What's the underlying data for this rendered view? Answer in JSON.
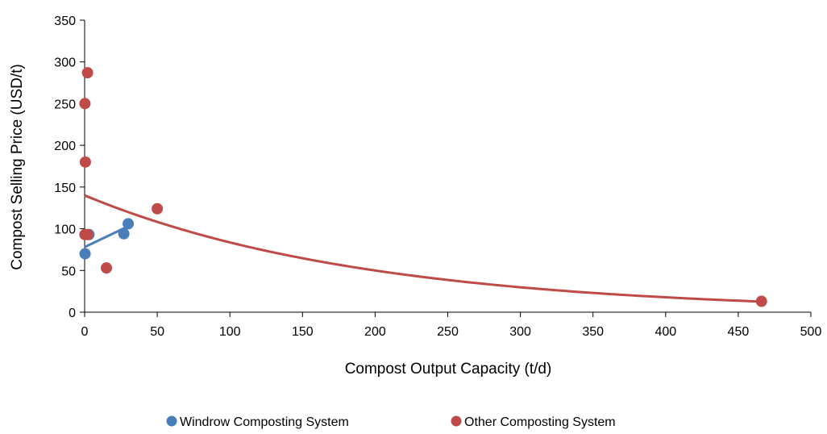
{
  "chart_data": {
    "type": "scatter",
    "xlabel": "Compost Output Capacity (t/d)",
    "ylabel": "Compost Selling Price (USD/t)",
    "xlim": [
      0,
      500
    ],
    "ylim": [
      0,
      350
    ],
    "xticks": [
      0,
      50,
      100,
      150,
      200,
      250,
      300,
      350,
      400,
      450,
      500
    ],
    "yticks": [
      0,
      50,
      100,
      150,
      200,
      250,
      300,
      350
    ],
    "grid": false,
    "legend_position": "bottom",
    "series": [
      {
        "name": "Windrow Composting System",
        "color": "#4a7ebb",
        "points": [
          [
            0.3,
            70
          ],
          [
            3,
            93
          ],
          [
            27,
            94
          ],
          [
            30,
            106
          ]
        ],
        "trendline": {
          "type": "linear",
          "from": [
            0,
            78
          ],
          "to": [
            30,
            103
          ]
        }
      },
      {
        "name": "Other Composting System",
        "color": "#be4b48",
        "points": [
          [
            2,
            287
          ],
          [
            0.2,
            250
          ],
          [
            0.5,
            180
          ],
          [
            0.2,
            93
          ],
          [
            2,
            93
          ],
          [
            15,
            53
          ],
          [
            50,
            124
          ],
          [
            466,
            13
          ]
        ],
        "trendline": {
          "type": "exponential",
          "intercept": 140,
          "rate": -0.00515,
          "from_x": 0,
          "to_x": 466
        }
      }
    ]
  }
}
